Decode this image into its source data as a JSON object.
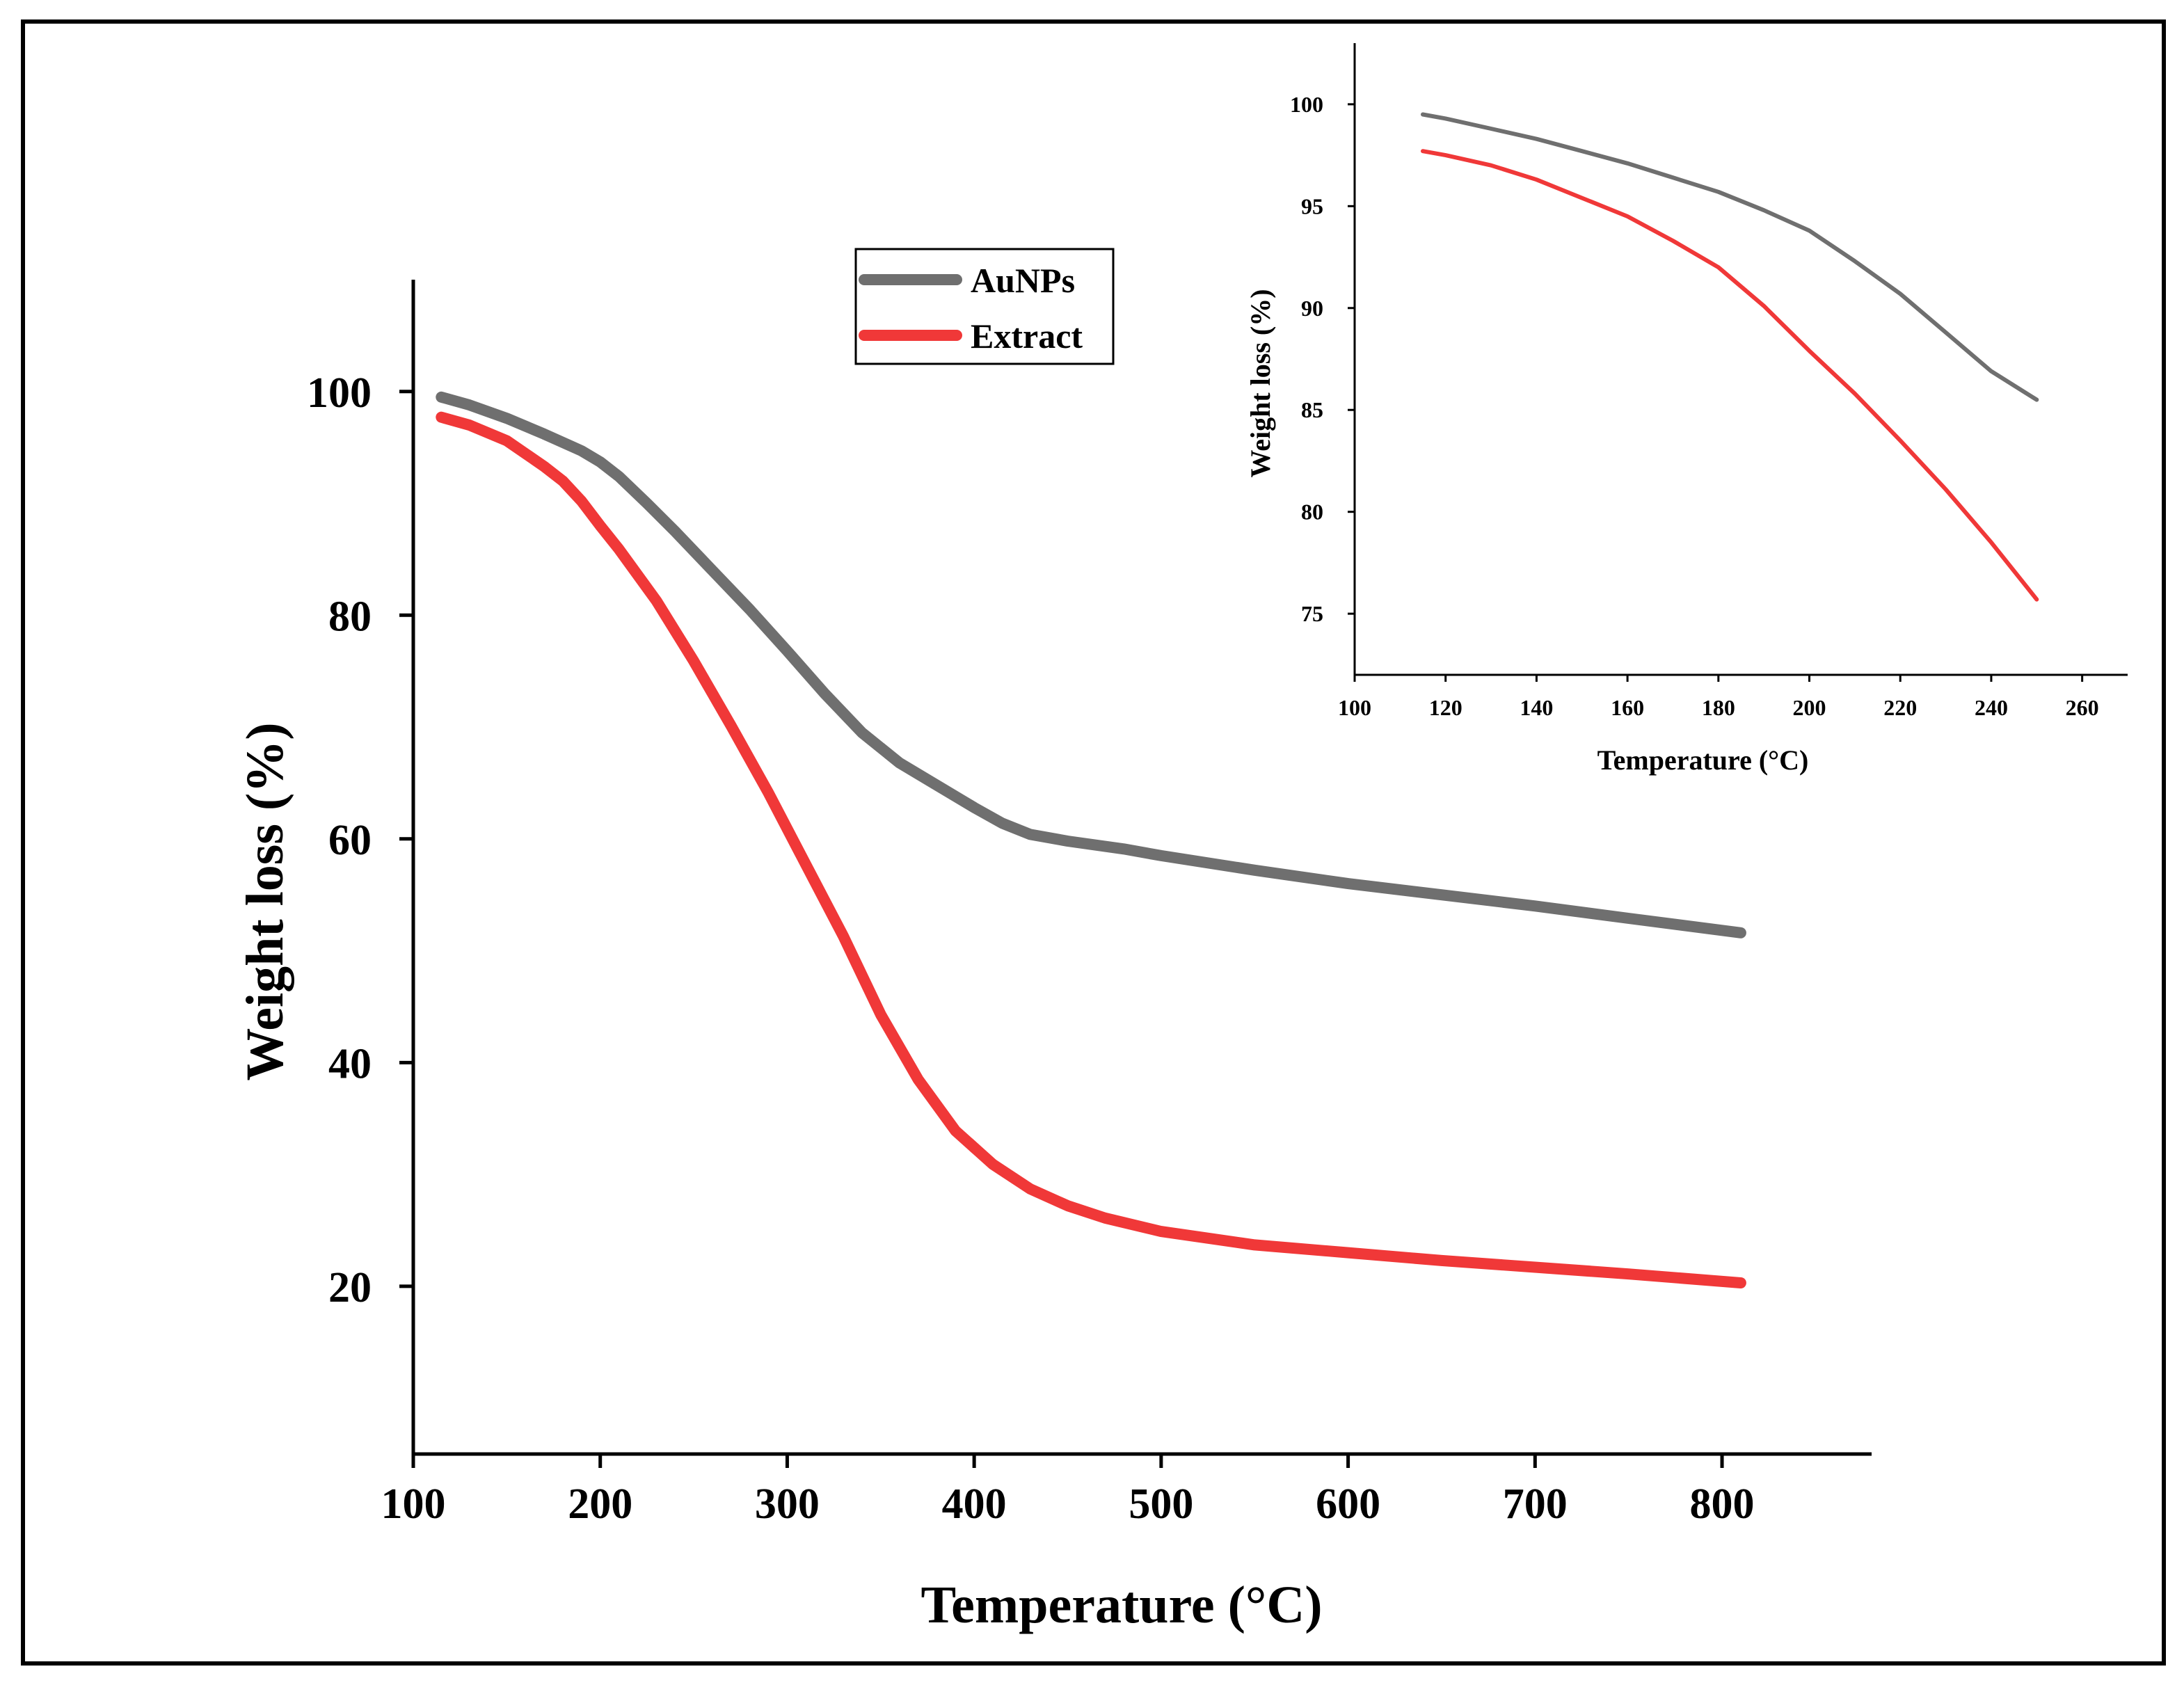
{
  "chart_data": [
    {
      "type": "line",
      "xlabel": "Temperature (°C)",
      "ylabel": "Weight loss (%)",
      "xlim": [
        100,
        880
      ],
      "ylim": [
        5,
        110
      ],
      "xticks": [
        100,
        200,
        300,
        400,
        500,
        600,
        700,
        800
      ],
      "yticks": [
        20,
        40,
        60,
        80,
        100
      ],
      "legend": "top-center",
      "grid": false,
      "series": [
        {
          "name": "AuNPs",
          "color": "#6f6f6f",
          "x": [
            115,
            130,
            150,
            170,
            190,
            200,
            210,
            225,
            240,
            260,
            280,
            300,
            320,
            340,
            360,
            380,
            400,
            415,
            430,
            450,
            480,
            500,
            550,
            600,
            650,
            700,
            750,
            810
          ],
          "y": [
            99.5,
            98.8,
            97.6,
            96.2,
            94.7,
            93.7,
            92.4,
            90.0,
            87.5,
            84.0,
            80.5,
            76.8,
            73.0,
            69.5,
            66.8,
            64.8,
            62.8,
            61.4,
            60.4,
            59.8,
            59.1,
            58.5,
            57.2,
            56.0,
            55.0,
            54.0,
            52.9,
            51.6
          ]
        },
        {
          "name": "Extract",
          "color": "#f03838",
          "x": [
            115,
            130,
            150,
            170,
            180,
            190,
            200,
            210,
            230,
            250,
            270,
            290,
            310,
            330,
            350,
            370,
            390,
            410,
            430,
            450,
            470,
            500,
            550,
            600,
            650,
            700,
            750,
            810
          ],
          "y": [
            97.7,
            97.0,
            95.6,
            93.3,
            92.0,
            90.2,
            88.0,
            85.9,
            81.3,
            75.9,
            70.1,
            64.1,
            57.7,
            51.3,
            44.3,
            38.5,
            33.9,
            30.9,
            28.7,
            27.2,
            26.1,
            24.9,
            23.7,
            23.0,
            22.3,
            21.7,
            21.1,
            20.3
          ]
        }
      ]
    },
    {
      "type": "line",
      "xlabel": "Temperature (°C)",
      "ylabel": "Weight loss (%)",
      "xlim": [
        100,
        270
      ],
      "ylim": [
        72,
        103
      ],
      "xticks": [
        100,
        120,
        140,
        160,
        180,
        200,
        220,
        240,
        260
      ],
      "yticks": [
        75,
        80,
        85,
        90,
        95,
        100
      ],
      "legend": "none",
      "grid": false,
      "series": [
        {
          "name": "AuNPs",
          "color": "#6f6f6f",
          "x": [
            115,
            120,
            130,
            140,
            150,
            160,
            170,
            180,
            190,
            200,
            210,
            220,
            230,
            240,
            250
          ],
          "y": [
            99.5,
            99.3,
            98.8,
            98.3,
            97.7,
            97.1,
            96.4,
            95.7,
            94.8,
            93.8,
            92.3,
            90.7,
            88.8,
            86.9,
            85.5
          ]
        },
        {
          "name": "Extract",
          "color": "#f03838",
          "x": [
            115,
            120,
            130,
            140,
            150,
            160,
            170,
            180,
            190,
            200,
            210,
            220,
            230,
            240,
            250
          ],
          "y": [
            97.7,
            97.5,
            97.0,
            96.3,
            95.4,
            94.5,
            93.3,
            92.0,
            90.1,
            87.9,
            85.8,
            83.5,
            81.1,
            78.5,
            75.7
          ]
        }
      ]
    }
  ]
}
